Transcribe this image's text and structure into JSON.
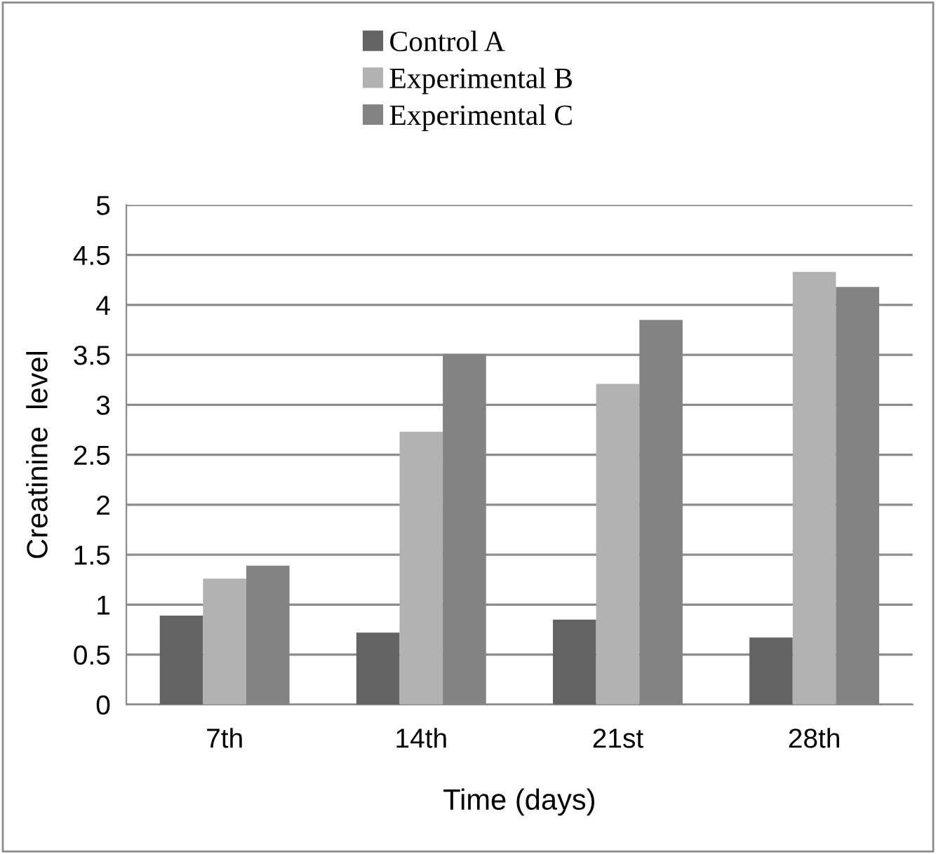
{
  "chart_data": {
    "type": "bar",
    "xlabel": "Time (days)",
    "ylabel": "Creatinine  level",
    "categories": [
      "7th",
      "14th",
      "21st",
      "28th"
    ],
    "series": [
      {
        "name": "Control A",
        "color": "#636363",
        "values": [
          0.89,
          0.72,
          0.85,
          0.67
        ]
      },
      {
        "name": "Experimental B",
        "color": "#b2b2b2",
        "values": [
          1.26,
          2.73,
          3.21,
          4.33
        ]
      },
      {
        "name": "Experimental C",
        "color": "#838383",
        "values": [
          1.39,
          3.51,
          3.85,
          4.18
        ]
      }
    ],
    "ylim": [
      0,
      5
    ],
    "yticks": [
      0,
      {
        "value": 0.5,
        "label": "0.5"
      },
      1,
      {
        "value": 1.5,
        "label": "1.5"
      },
      2,
      {
        "value": 2.5,
        "label": "2.5"
      },
      3,
      {
        "value": 3.5,
        "label": "3.5"
      },
      4,
      {
        "value": 4.5,
        "label": "4.5"
      },
      5
    ],
    "grid": "y",
    "legend": "top"
  }
}
